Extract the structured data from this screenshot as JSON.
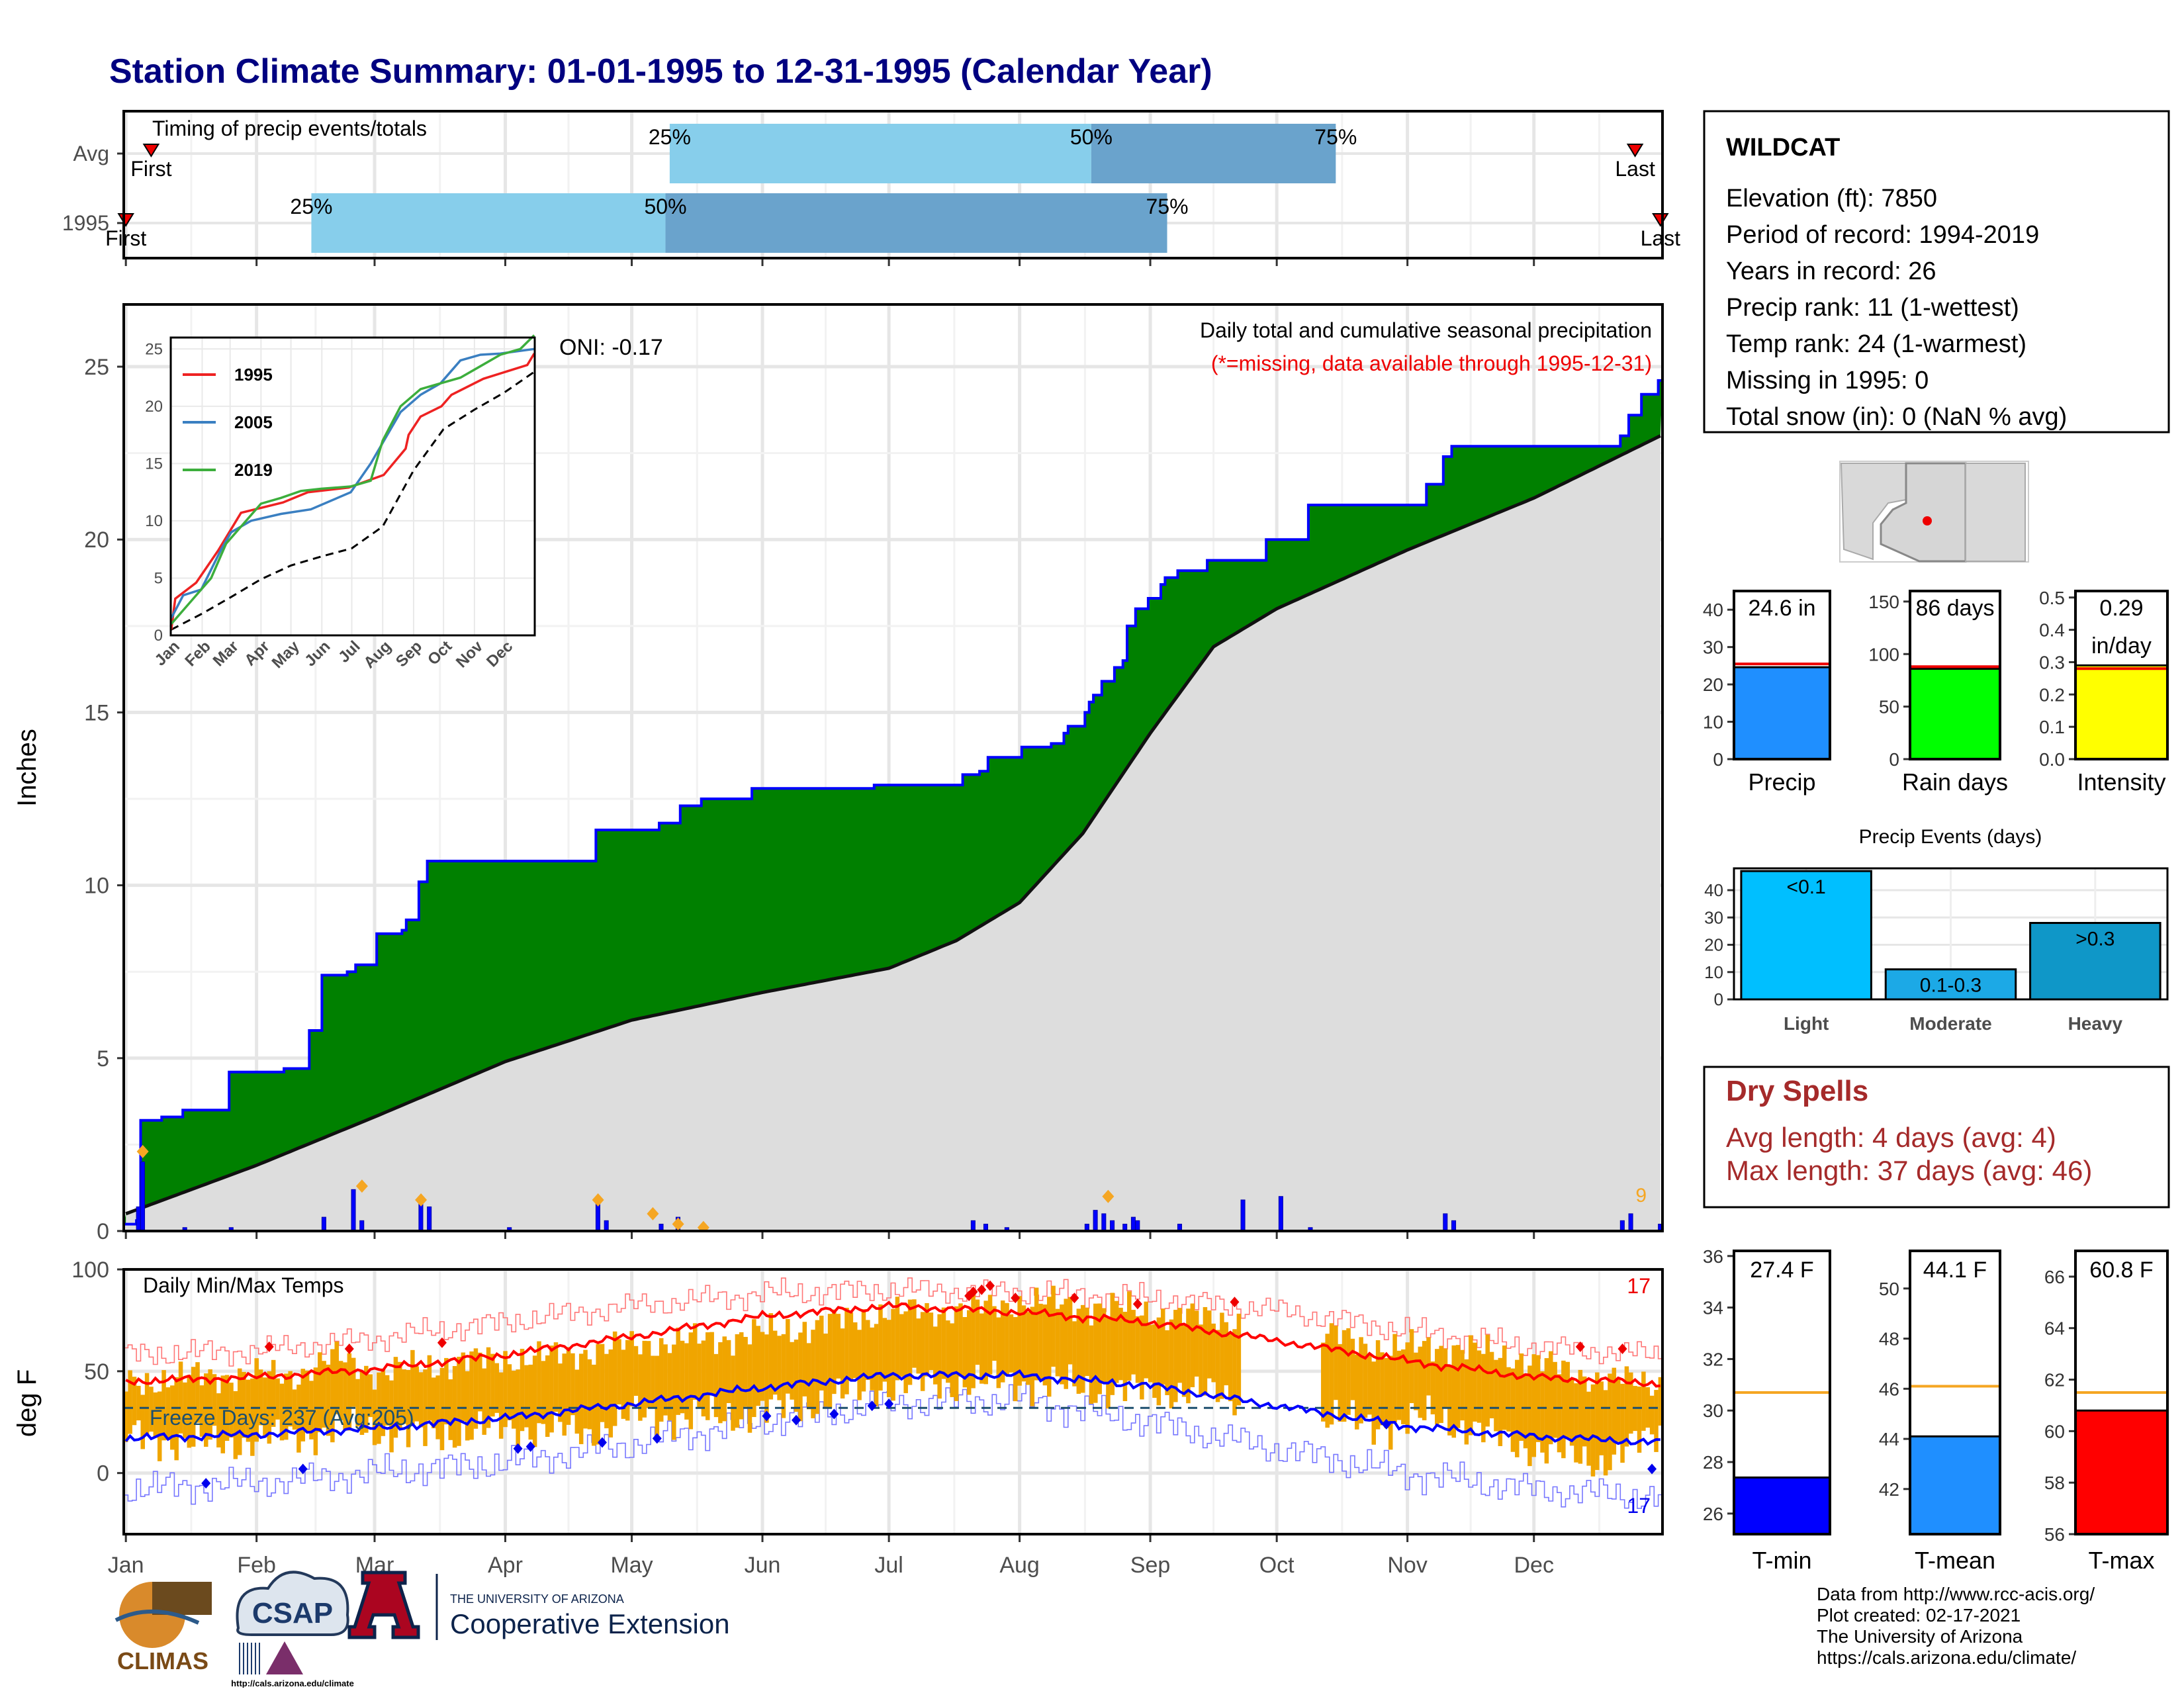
{
  "title": "Station Climate Summary: 01-01-1995 to 12-31-1995 (Calendar Year)",
  "colors": {
    "title": "#000080",
    "precip_fill": "#008000",
    "precip_line": "#0000ff",
    "avg_fill": "#dddddd",
    "daily_bar": "#0000ff",
    "quartile_light": "#87ceeb",
    "quartile_dark": "#6aa3cc",
    "temp_bar": "#f0a500",
    "tmax_line": "#ff0000",
    "tmin_line": "#0000ff",
    "rec_max": "#ff7777",
    "rec_min": "#7777ff",
    "dry_spells": "#a52a2a"
  },
  "months": [
    "Jan",
    "Feb",
    "Mar",
    "Apr",
    "May",
    "Jun",
    "Jul",
    "Aug",
    "Sep",
    "Oct",
    "Nov",
    "Dec"
  ],
  "timing": {
    "label": "Timing of precip events/totals",
    "rows": [
      {
        "name": "Avg",
        "first_day": 6,
        "p25": 129,
        "p50": 229,
        "p75": 287,
        "last_day": 358,
        "first_label": "First",
        "last_label": "Last"
      },
      {
        "name": "1995",
        "first_day": 0,
        "p25": 44,
        "p50": 128,
        "p75": 247,
        "last_day": 364,
        "first_label": "First",
        "last_label": "Last"
      }
    ],
    "pct_labels": [
      "25%",
      "50%",
      "75%"
    ]
  },
  "precip": {
    "ylabel": "Inches",
    "annotation_title": "Daily total and cumulative seasonal precipitation",
    "annotation_missing": "(*=missing, data available through 1995-12-31)",
    "oni": "ONI: -0.17",
    "corner_count": "9",
    "yticks": [
      0,
      5,
      10,
      15,
      20,
      25
    ],
    "ylim": [
      0,
      26.8
    ],
    "observed_cumulative": [
      [
        0,
        0.2
      ],
      [
        3,
        0.3
      ],
      [
        4,
        3.2
      ],
      [
        9,
        3.3
      ],
      [
        14,
        3.5
      ],
      [
        25,
        4.6
      ],
      [
        38,
        4.7
      ],
      [
        44,
        5.8
      ],
      [
        47,
        7.4
      ],
      [
        53,
        7.5
      ],
      [
        55,
        7.7
      ],
      [
        60,
        8.6
      ],
      [
        66,
        8.7
      ],
      [
        67,
        9.0
      ],
      [
        70,
        10.1
      ],
      [
        72,
        10.7
      ],
      [
        112,
        11.6
      ],
      [
        127,
        11.8
      ],
      [
        132,
        12.3
      ],
      [
        137,
        12.5
      ],
      [
        149,
        12.8
      ],
      [
        178,
        12.9
      ],
      [
        199,
        13.2
      ],
      [
        203,
        13.3
      ],
      [
        205,
        13.7
      ],
      [
        213,
        14.0
      ],
      [
        220,
        14.1
      ],
      [
        223,
        14.4
      ],
      [
        224,
        14.6
      ],
      [
        228,
        15.0
      ],
      [
        229,
        15.3
      ],
      [
        230,
        15.5
      ],
      [
        232,
        15.9
      ],
      [
        235,
        16.3
      ],
      [
        237,
        16.5
      ],
      [
        238,
        17.5
      ],
      [
        240,
        18.0
      ],
      [
        243,
        18.3
      ],
      [
        246,
        18.7
      ],
      [
        247,
        18.9
      ],
      [
        250,
        19.1
      ],
      [
        257,
        19.4
      ],
      [
        271,
        20.0
      ],
      [
        281,
        21.0
      ],
      [
        309,
        21.6
      ],
      [
        313,
        22.4
      ],
      [
        315,
        22.7
      ],
      [
        355,
        23.0
      ],
      [
        357,
        23.6
      ],
      [
        360,
        24.2
      ],
      [
        364,
        24.6
      ]
    ],
    "average_cumulative": [
      [
        0,
        0.5
      ],
      [
        31,
        1.9
      ],
      [
        59,
        3.3
      ],
      [
        90,
        4.9
      ],
      [
        120,
        6.1
      ],
      [
        151,
        6.9
      ],
      [
        181,
        7.6
      ],
      [
        197,
        8.4
      ],
      [
        212,
        9.5
      ],
      [
        227,
        11.5
      ],
      [
        243,
        14.4
      ],
      [
        258,
        16.9
      ],
      [
        273,
        18.0
      ],
      [
        304,
        19.7
      ],
      [
        334,
        21.2
      ],
      [
        364,
        23.0
      ]
    ],
    "daily_totals": [
      [
        3,
        0.7
      ],
      [
        4,
        2.0
      ],
      [
        14,
        0.1
      ],
      [
        25,
        0.1
      ],
      [
        47,
        0.4
      ],
      [
        54,
        1.2
      ],
      [
        56,
        0.3
      ],
      [
        70,
        0.8
      ],
      [
        72,
        0.7
      ],
      [
        91,
        0.1
      ],
      [
        112,
        0.8
      ],
      [
        114,
        0.3
      ],
      [
        127,
        0.2
      ],
      [
        131,
        0.4
      ],
      [
        137,
        0.2
      ],
      [
        201,
        0.3
      ],
      [
        204,
        0.2
      ],
      [
        209,
        0.1
      ],
      [
        228,
        0.2
      ],
      [
        230,
        0.6
      ],
      [
        232,
        0.5
      ],
      [
        234,
        0.3
      ],
      [
        237,
        0.2
      ],
      [
        239,
        0.4
      ],
      [
        240,
        0.3
      ],
      [
        250,
        0.2
      ],
      [
        265,
        0.9
      ],
      [
        274,
        1.0
      ],
      [
        281,
        0.1
      ],
      [
        313,
        0.5
      ],
      [
        315,
        0.3
      ],
      [
        355,
        0.3
      ],
      [
        357,
        0.5
      ],
      [
        364,
        0.2
      ]
    ],
    "record_markers": [
      [
        4,
        2.3
      ],
      [
        56,
        1.3
      ],
      [
        70,
        0.9
      ],
      [
        112,
        0.9
      ],
      [
        125,
        0.5
      ],
      [
        131,
        0.2
      ],
      [
        137,
        0.1
      ],
      [
        233,
        1.0
      ]
    ],
    "inset": {
      "series": [
        {
          "name": "1995",
          "color": "#ee2222",
          "points": [
            [
              0,
              0.5
            ],
            [
              4,
              3.2
            ],
            [
              25,
              4.6
            ],
            [
              47,
              7.4
            ],
            [
              70,
              10.7
            ],
            [
              112,
              11.6
            ],
            [
              137,
              12.5
            ],
            [
              178,
              12.9
            ],
            [
              213,
              14.0
            ],
            [
              235,
              16.3
            ],
            [
              238,
              17.5
            ],
            [
              250,
              19.1
            ],
            [
              271,
              20.0
            ],
            [
              281,
              21.0
            ],
            [
              313,
              22.4
            ],
            [
              357,
              23.6
            ],
            [
              364,
              24.6
            ]
          ]
        },
        {
          "name": "2005",
          "color": "#3a7fc1",
          "points": [
            [
              0,
              1.5
            ],
            [
              12,
              3.5
            ],
            [
              30,
              4.0
            ],
            [
              50,
              7.5
            ],
            [
              60,
              9.0
            ],
            [
              80,
              10.0
            ],
            [
              110,
              10.6
            ],
            [
              140,
              11.0
            ],
            [
              180,
              12.5
            ],
            [
              200,
              15.0
            ],
            [
              210,
              16.5
            ],
            [
              230,
              19.5
            ],
            [
              250,
              21.0
            ],
            [
              270,
              22.0
            ],
            [
              290,
              24.0
            ],
            [
              310,
              24.5
            ],
            [
              330,
              24.6
            ],
            [
              364,
              25.0
            ]
          ]
        },
        {
          "name": "2019",
          "color": "#3cae3c",
          "points": [
            [
              0,
              1.0
            ],
            [
              20,
              3.0
            ],
            [
              40,
              5.0
            ],
            [
              55,
              8.0
            ],
            [
              70,
              9.5
            ],
            [
              90,
              11.5
            ],
            [
              110,
              12.0
            ],
            [
              130,
              12.6
            ],
            [
              150,
              12.8
            ],
            [
              180,
              13.0
            ],
            [
              200,
              13.5
            ],
            [
              212,
              17.0
            ],
            [
              230,
              20.0
            ],
            [
              250,
              21.5
            ],
            [
              270,
              22.0
            ],
            [
              290,
              22.5
            ],
            [
              310,
              23.5
            ],
            [
              330,
              24.5
            ],
            [
              350,
              25.0
            ],
            [
              364,
              26.2
            ]
          ]
        }
      ],
      "average": [
        [
          0,
          0.5
        ],
        [
          31,
          1.9
        ],
        [
          59,
          3.3
        ],
        [
          90,
          4.9
        ],
        [
          120,
          6.1
        ],
        [
          151,
          6.9
        ],
        [
          181,
          7.6
        ],
        [
          212,
          9.5
        ],
        [
          243,
          14.4
        ],
        [
          273,
          18.0
        ],
        [
          304,
          19.7
        ],
        [
          334,
          21.2
        ],
        [
          364,
          23.0
        ]
      ],
      "yticks": [
        0,
        5,
        10,
        15,
        20,
        25
      ],
      "ylim": [
        0,
        26
      ]
    }
  },
  "temps": {
    "ylabel": "deg F",
    "title": "Daily Min/Max Temps",
    "freeze_label": "Freeze Days: 237 (Avg:205)",
    "freeze_threshold": 32,
    "record_max_count": "17",
    "record_min_count": "17",
    "yticks": [
      0,
      50,
      100
    ],
    "ylim": [
      -30,
      100
    ],
    "avg_max": [
      [
        0,
        45
      ],
      [
        31,
        47
      ],
      [
        59,
        51
      ],
      [
        90,
        58
      ],
      [
        120,
        67
      ],
      [
        151,
        77
      ],
      [
        181,
        82
      ],
      [
        212,
        79
      ],
      [
        243,
        74
      ],
      [
        273,
        65
      ],
      [
        304,
        55
      ],
      [
        334,
        47
      ],
      [
        364,
        44
      ]
    ],
    "avg_min": [
      [
        0,
        17
      ],
      [
        31,
        19
      ],
      [
        59,
        22
      ],
      [
        90,
        27
      ],
      [
        120,
        34
      ],
      [
        151,
        42
      ],
      [
        181,
        48
      ],
      [
        212,
        48
      ],
      [
        243,
        43
      ],
      [
        273,
        33
      ],
      [
        304,
        23
      ],
      [
        334,
        18
      ],
      [
        364,
        15
      ]
    ],
    "rec_max": [
      [
        0,
        58
      ],
      [
        31,
        60
      ],
      [
        59,
        66
      ],
      [
        90,
        74
      ],
      [
        120,
        82
      ],
      [
        151,
        88
      ],
      [
        181,
        90
      ],
      [
        212,
        89
      ],
      [
        243,
        86
      ],
      [
        273,
        80
      ],
      [
        304,
        70
      ],
      [
        334,
        62
      ],
      [
        364,
        58
      ]
    ],
    "rec_min": [
      [
        0,
        -8
      ],
      [
        31,
        -5
      ],
      [
        59,
        0
      ],
      [
        90,
        5
      ],
      [
        120,
        14
      ],
      [
        151,
        25
      ],
      [
        181,
        34
      ],
      [
        212,
        36
      ],
      [
        243,
        25
      ],
      [
        273,
        12
      ],
      [
        304,
        0
      ],
      [
        334,
        -8
      ],
      [
        364,
        -12
      ]
    ],
    "obs_max": [
      [
        0,
        44
      ],
      [
        20,
        48
      ],
      [
        40,
        48
      ],
      [
        50,
        57
      ],
      [
        60,
        49
      ],
      [
        80,
        55
      ],
      [
        100,
        57
      ],
      [
        120,
        63
      ],
      [
        140,
        66
      ],
      [
        160,
        71
      ],
      [
        180,
        79
      ],
      [
        200,
        80
      ],
      [
        212,
        84
      ],
      [
        230,
        82
      ],
      [
        250,
        77
      ],
      [
        260,
        76
      ],
      [
        290,
        66
      ],
      [
        300,
        60
      ],
      [
        310,
        63
      ],
      [
        330,
        57
      ],
      [
        350,
        46
      ],
      [
        364,
        44
      ]
    ],
    "obs_min": [
      [
        0,
        18
      ],
      [
        20,
        14
      ],
      [
        40,
        18
      ],
      [
        55,
        22
      ],
      [
        70,
        18
      ],
      [
        90,
        22
      ],
      [
        110,
        20
      ],
      [
        120,
        28
      ],
      [
        140,
        27
      ],
      [
        160,
        33
      ],
      [
        180,
        43
      ],
      [
        200,
        44
      ],
      [
        212,
        45
      ],
      [
        230,
        41
      ],
      [
        250,
        40
      ],
      [
        260,
        38
      ],
      [
        290,
        25
      ],
      [
        300,
        23
      ],
      [
        310,
        28
      ],
      [
        330,
        14
      ],
      [
        350,
        5
      ],
      [
        364,
        20
      ]
    ],
    "hi_markers": [
      [
        34,
        62
      ],
      [
        53,
        61
      ],
      [
        75,
        64
      ],
      [
        200,
        87
      ],
      [
        201,
        89
      ],
      [
        203,
        90
      ],
      [
        205,
        92
      ],
      [
        211,
        86
      ],
      [
        225,
        86
      ],
      [
        240,
        83
      ],
      [
        263,
        84
      ],
      [
        345,
        62
      ],
      [
        355,
        61
      ]
    ],
    "lo_markers": [
      [
        19,
        -5
      ],
      [
        42,
        2
      ],
      [
        93,
        12
      ],
      [
        96,
        13
      ],
      [
        113,
        15
      ],
      [
        126,
        17
      ],
      [
        152,
        28
      ],
      [
        159,
        26
      ],
      [
        168,
        29
      ],
      [
        177,
        33
      ],
      [
        181,
        34
      ],
      [
        299,
        24
      ],
      [
        362,
        2
      ]
    ]
  },
  "station": {
    "name": "WILDCAT",
    "lines": [
      "Elevation (ft): 7850",
      "Period of record: 1994-2019",
      "Years in record: 26",
      "Precip rank: 11 (1-wettest)",
      "Temp rank: 24 (1-warmest)",
      "Missing in 1995: 0",
      "Total snow (in): 0 (NaN % avg)"
    ]
  },
  "mini_bars": [
    {
      "name": "Precip",
      "value": 24.6,
      "label": "24.6 in",
      "label2": "",
      "avg": 25.5,
      "color": "#1f8fff",
      "ylim": [
        0,
        45
      ],
      "yticks": [
        0,
        10,
        20,
        30,
        40
      ]
    },
    {
      "name": "Rain days",
      "value": 86,
      "label": "86 days",
      "label2": "",
      "avg": 88,
      "color": "#00ff00",
      "ylim": [
        0,
        160
      ],
      "yticks": [
        0,
        50,
        100,
        150
      ]
    },
    {
      "name": "Intensity",
      "value": 0.29,
      "label": "0.29",
      "label2": "in/day",
      "avg": 0.28,
      "color": "#ffff00",
      "ylim": [
        0,
        0.52
      ],
      "yticks": [
        0.0,
        0.1,
        0.2,
        0.3,
        0.4,
        0.5
      ]
    }
  ],
  "events": {
    "title": "Precip Events (days)",
    "categories": [
      "Light",
      "Moderate",
      "Heavy"
    ],
    "values": [
      47,
      11,
      28
    ],
    "labels": [
      "<0.1",
      "0.1-0.3",
      ">0.3"
    ],
    "colors": [
      "#00bfff",
      "#1ca9e6",
      "#0f97c8"
    ],
    "ylim": [
      0,
      48
    ],
    "yticks": [
      0,
      10,
      20,
      30,
      40
    ]
  },
  "dry_spells": {
    "title": "Dry Spells",
    "avg_line": "Avg length: 4 days (avg: 4)",
    "max_line": "Max length: 37 days (avg: 46)"
  },
  "temp_bars": [
    {
      "name": "T-min",
      "value": 27.4,
      "label": "27.4 F",
      "avg": 30.7,
      "color": "#0000ff",
      "ylim": [
        25.2,
        36.2
      ],
      "yticks": [
        26,
        28,
        30,
        32,
        34,
        36
      ]
    },
    {
      "name": "T-mean",
      "value": 44.1,
      "label": "44.1 F",
      "avg": 46.1,
      "color": "#1f8fff",
      "ylim": [
        40.2,
        51.5
      ],
      "yticks": [
        42,
        44,
        46,
        48,
        50
      ]
    },
    {
      "name": "T-max",
      "value": 60.8,
      "label": "60.8 F",
      "avg": 61.5,
      "color": "#ff0000",
      "ylim": [
        56,
        67
      ],
      "yticks": [
        56,
        58,
        60,
        62,
        64,
        66
      ]
    }
  ],
  "credits": [
    "Data from http://www.rcc-acis.org/",
    "Plot created: 02-17-2021",
    "The University of Arizona",
    "https://cals.arizona.edu/climate/"
  ],
  "logos": {
    "climas": "CLIMAS",
    "csap": "CSAP",
    "csap_url": "http://cals.arizona.edu/climate",
    "ua_small": "THE UNIVERSITY OF ARIZONA",
    "ua_big": "Cooperative Extension"
  }
}
